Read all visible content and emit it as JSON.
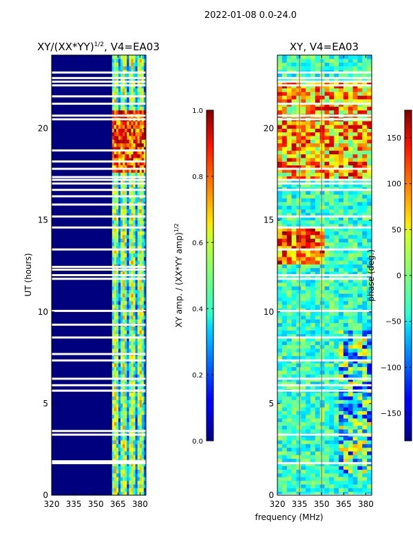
{
  "suptitle": "2022-01-08 0.0-24.0",
  "chart_data": [
    {
      "type": "heatmap",
      "title_main": "XY/(XX*YY)",
      "title_sup": "1/2",
      "title_tail": ", V4=EA03",
      "xlabel": "",
      "ylabel": "UT (hours)",
      "xlim": [
        320,
        384
      ],
      "ylim": [
        0,
        24
      ],
      "xticks": [
        320,
        335,
        350,
        365,
        380
      ],
      "yticks": [
        0,
        5,
        10,
        15,
        20
      ],
      "colormap": "jet",
      "colorbar": {
        "label_main": "XY amp. / (XX*YY amp)",
        "label_sup": "1/2",
        "range": [
          0.0,
          1.0
        ],
        "ticks": [
          "0.0",
          "0.2",
          "0.4",
          "0.6",
          "0.8",
          "1.0"
        ],
        "tick_values": [
          0.0,
          0.2,
          0.4,
          0.6,
          0.8,
          1.0
        ]
      },
      "high_signal_band_mhz": [
        361,
        384
      ],
      "flagged_ut_hours": [
        1.75,
        1.85,
        3.3,
        3.5,
        5.7,
        6.0,
        6.35,
        7.35,
        7.7,
        8.6,
        9.3,
        10.05,
        11.8,
        12.0,
        12.3,
        12.45,
        13.4,
        14.6,
        15.2,
        15.85,
        16.3,
        16.65,
        17.0,
        17.2,
        17.35,
        17.8,
        18.2,
        18.8,
        20.5,
        20.7,
        21.35,
        21.75,
        22.35,
        22.55,
        22.75,
        23.05
      ]
    },
    {
      "type": "heatmap",
      "title_main": "XY, V4=EA03",
      "xlabel": "frequency (MHz)",
      "ylabel": "",
      "xlim": [
        320,
        384
      ],
      "ylim": [
        0,
        24
      ],
      "xticks": [
        320,
        335,
        350,
        365,
        380
      ],
      "yticks": [
        0,
        5,
        10,
        15,
        20
      ],
      "colormap": "jet",
      "colorbar": {
        "label_main": "phase (deg.)",
        "label_sup": "",
        "range": [
          -180,
          180
        ],
        "ticks": [
          "−150",
          "−100",
          "−50",
          "0",
          "50",
          "100",
          "150"
        ],
        "tick_values": [
          -150,
          -100,
          -50,
          0,
          50,
          100,
          150
        ]
      },
      "marker_lines_mhz": [
        335,
        350
      ],
      "flagged_ut_hours": [
        0.0,
        1.75,
        3.3,
        5.7,
        6.0,
        6.35,
        7.35,
        8.6,
        10.05,
        11.8,
        12.0,
        13.4,
        14.6,
        15.2,
        16.65,
        17.0,
        17.2,
        17.8,
        20.5,
        20.7,
        21.35,
        22.35,
        22.55,
        22.75,
        23.05
      ]
    }
  ]
}
